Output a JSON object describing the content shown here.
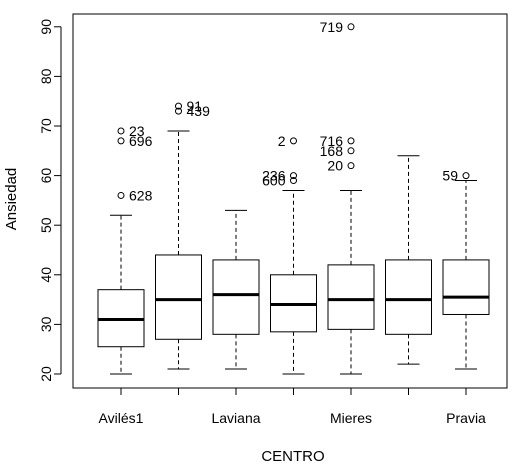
{
  "chart_data": {
    "type": "boxplot",
    "xlabel": "CENTRO",
    "ylabel": "Ansiedad",
    "ylim": [
      17,
      93
    ],
    "yticks": [
      20,
      30,
      40,
      50,
      60,
      70,
      80,
      90
    ],
    "x_tick_labels_shown": [
      "Avilés1",
      "Laviana",
      "Mieres",
      "Pravia"
    ],
    "groups": [
      {
        "label": "Avilés1",
        "whisker_low": 20,
        "q1": 25.5,
        "median": 31,
        "q3": 37,
        "whisker_high": 52,
        "outliers": [
          {
            "value": 69,
            "id": "23"
          },
          {
            "value": 67,
            "id": "696"
          },
          {
            "value": 56,
            "id": "628"
          }
        ]
      },
      {
        "label": "",
        "whisker_low": 21,
        "q1": 27,
        "median": 35,
        "q3": 44,
        "whisker_high": 69,
        "outliers": [
          {
            "value": 74,
            "id": "91"
          },
          {
            "value": 73,
            "id": "439"
          }
        ]
      },
      {
        "label": "Laviana",
        "whisker_low": 21,
        "q1": 28,
        "median": 36,
        "q3": 43,
        "whisker_high": 53,
        "outliers": []
      },
      {
        "label": "",
        "whisker_low": 20,
        "q1": 28.5,
        "median": 34,
        "q3": 40,
        "whisker_high": 57,
        "outliers": [
          {
            "value": 67,
            "id": "2"
          },
          {
            "value": 60,
            "id": "236"
          },
          {
            "value": 59,
            "id": "600"
          }
        ]
      },
      {
        "label": "Mieres",
        "whisker_low": 20,
        "q1": 29,
        "median": 35,
        "q3": 42,
        "whisker_high": 57,
        "outliers": [
          {
            "value": 90,
            "id": "719"
          },
          {
            "value": 67,
            "id": "716"
          },
          {
            "value": 65,
            "id": "168"
          },
          {
            "value": 62,
            "id": "20"
          }
        ]
      },
      {
        "label": "",
        "whisker_low": 22,
        "q1": 28,
        "median": 35,
        "q3": 43,
        "whisker_high": 64,
        "outliers": []
      },
      {
        "label": "Pravia",
        "whisker_low": 21,
        "q1": 32,
        "median": 35.5,
        "q3": 43,
        "whisker_high": 59,
        "outliers": [
          {
            "value": 60,
            "id": "59"
          }
        ]
      }
    ]
  }
}
